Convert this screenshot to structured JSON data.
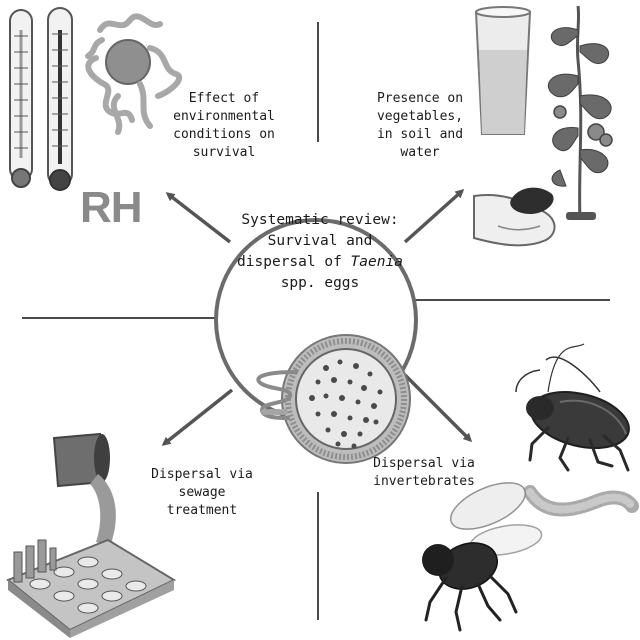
{
  "center": {
    "line1": "Systematic review:",
    "line2": "Survival and",
    "line3_prefix": "dispersal of ",
    "line3_italic": "Taenia",
    "line4": "spp. eggs"
  },
  "branches": {
    "top_left": {
      "lines": [
        "Effect of",
        "environmental",
        "conditions on",
        "survival"
      ]
    },
    "top_right": {
      "lines": [
        "Presence on",
        "vegetables,",
        "in soil and",
        "water"
      ]
    },
    "bottom_left": {
      "lines": [
        "Dispersal via",
        "sewage",
        "treatment"
      ]
    },
    "bottom_right": {
      "lines": [
        "Dispersal via",
        "invertebrates"
      ]
    }
  },
  "rh_label": "RH",
  "icons": {
    "top_left": [
      "thermometer-icon",
      "thermometer-icon",
      "egg-cluster-icon"
    ],
    "top_right": [
      "water-glass-icon",
      "tomato-plant-icon",
      "soil-in-hand-icon"
    ],
    "bottom_left": [
      "sewage-pipe-icon",
      "treatment-plant-icon"
    ],
    "bottom_right": [
      "cockroach-icon",
      "earthworm-icon",
      "fly-icon"
    ],
    "center": [
      "taenia-egg-icon",
      "tapeworm-icon"
    ]
  },
  "colors": {
    "line": "#555555",
    "circle_stroke": "#6b6b6b",
    "egg_shell": "#9a9a9a",
    "text": "#1b1b1b"
  }
}
